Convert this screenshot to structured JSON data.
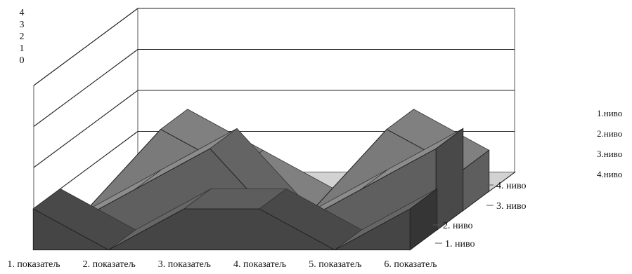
{
  "chart_data": {
    "type": "area",
    "variant": "3d-area",
    "categories": [
      "1. показатељ",
      "2. показатељ",
      "3. показатељ",
      "4. показатељ",
      "5. показатељ",
      "6. показатељ"
    ],
    "depth_labels": [
      "1. ниво",
      "2. ниво",
      "3. ниво",
      "4. ниво"
    ],
    "series": [
      {
        "name": "1. ниво",
        "values": [
          1,
          0,
          1,
          1,
          0,
          1
        ],
        "color": "#595959"
      },
      {
        "name": "2. ниво",
        "values": [
          0,
          1,
          2,
          0,
          1,
          2
        ],
        "color": "#7a7a7a"
      },
      {
        "name": "3. ниво",
        "values": [
          0,
          2,
          1,
          0,
          2,
          1
        ],
        "color": "#9c9c9c"
      },
      {
        "name": "4. ниво",
        "values": [
          0,
          0,
          0,
          0,
          0,
          0
        ],
        "color": "#c8c8c8"
      }
    ],
    "legend": {
      "position": "right",
      "entries": [
        "1.ниво",
        "2.ниво",
        "3.ниво",
        "4.ниво"
      ]
    },
    "y_ticks": [
      "4",
      "3",
      "2",
      "1",
      "0"
    ],
    "ylim": [
      0,
      4
    ],
    "grid": true
  }
}
